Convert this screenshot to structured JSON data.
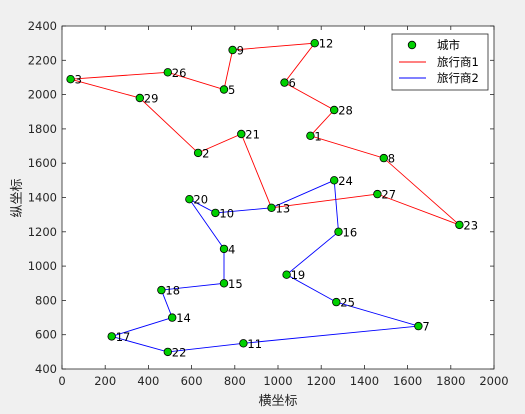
{
  "chart_data": {
    "type": "scatter",
    "xlabel": "横坐标",
    "ylabel": "纵坐标",
    "xlim": [
      0,
      2000
    ],
    "ylim": [
      400,
      2400
    ],
    "xticks": [
      0,
      200,
      400,
      600,
      800,
      1000,
      1200,
      1400,
      1600,
      1800,
      2000
    ],
    "yticks": [
      400,
      600,
      800,
      1000,
      1200,
      1400,
      1600,
      1800,
      2000,
      2200,
      2400
    ],
    "grid": false,
    "legend_location": "top-right",
    "cities": {
      "name": "城市",
      "marker_color": "#00d000",
      "points": [
        {
          "id": "1",
          "x": 1150,
          "y": 1760
        },
        {
          "id": "2",
          "x": 630,
          "y": 1660
        },
        {
          "id": "3",
          "x": 40,
          "y": 2090
        },
        {
          "id": "4",
          "x": 750,
          "y": 1100
        },
        {
          "id": "5",
          "x": 750,
          "y": 2030
        },
        {
          "id": "6",
          "x": 1030,
          "y": 2070
        },
        {
          "id": "7",
          "x": 1650,
          "y": 650
        },
        {
          "id": "8",
          "x": 1490,
          "y": 1630
        },
        {
          "id": "9",
          "x": 790,
          "y": 2260
        },
        {
          "id": "10",
          "x": 710,
          "y": 1310
        },
        {
          "id": "11",
          "x": 840,
          "y": 550
        },
        {
          "id": "12",
          "x": 1170,
          "y": 2300
        },
        {
          "id": "13",
          "x": 970,
          "y": 1340
        },
        {
          "id": "14",
          "x": 510,
          "y": 700
        },
        {
          "id": "15",
          "x": 750,
          "y": 900
        },
        {
          "id": "16",
          "x": 1280,
          "y": 1200
        },
        {
          "id": "17",
          "x": 230,
          "y": 590
        },
        {
          "id": "18",
          "x": 460,
          "y": 860
        },
        {
          "id": "19",
          "x": 1040,
          "y": 950
        },
        {
          "id": "20",
          "x": 590,
          "y": 1390
        },
        {
          "id": "21",
          "x": 830,
          "y": 1770
        },
        {
          "id": "22",
          "x": 490,
          "y": 500
        },
        {
          "id": "23",
          "x": 1840,
          "y": 1240
        },
        {
          "id": "24",
          "x": 1260,
          "y": 1500
        },
        {
          "id": "25",
          "x": 1270,
          "y": 790
        },
        {
          "id": "26",
          "x": 490,
          "y": 2130
        },
        {
          "id": "27",
          "x": 1460,
          "y": 1420
        },
        {
          "id": "28",
          "x": 1260,
          "y": 1910
        },
        {
          "id": "29",
          "x": 360,
          "y": 1980
        }
      ]
    },
    "series": [
      {
        "name": "旅行商1",
        "color": "#ff0000",
        "route": [
          "13",
          "21",
          "2",
          "29",
          "3",
          "26",
          "5",
          "9",
          "12",
          "6",
          "28",
          "1",
          "8",
          "23",
          "27",
          "13"
        ]
      },
      {
        "name": "旅行商2",
        "color": "#0000ff",
        "route": [
          "13",
          "10",
          "20",
          "4",
          "15",
          "18",
          "14",
          "17",
          "22",
          "11",
          "7",
          "25",
          "19",
          "16",
          "24",
          "13"
        ]
      }
    ]
  }
}
